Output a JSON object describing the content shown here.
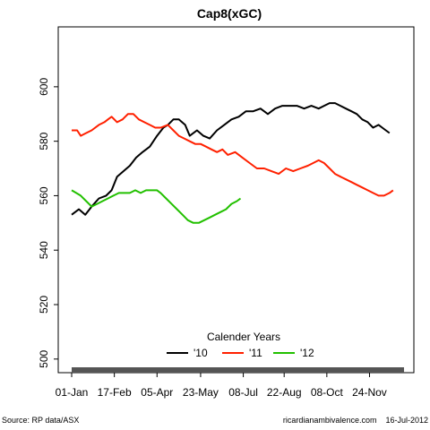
{
  "chart_data": {
    "type": "line",
    "title": "Cap8(xGC)",
    "xlabel": "",
    "ylabel": "",
    "ylim": [
      495,
      622
    ],
    "xlim": [
      0,
      366
    ],
    "x_unit": "day of year",
    "yticks": [
      500,
      520,
      540,
      560,
      580,
      600
    ],
    "xticks": [
      {
        "day": 0,
        "label": "01-Jan"
      },
      {
        "day": 47,
        "label": "17-Feb"
      },
      {
        "day": 94,
        "label": "05-Apr"
      },
      {
        "day": 142,
        "label": "23-May"
      },
      {
        "day": 189,
        "label": "08-Jul"
      },
      {
        "day": 234,
        "label": "22-Aug"
      },
      {
        "day": 281,
        "label": "08-Oct"
      },
      {
        "day": 328,
        "label": "24-Nov"
      }
    ],
    "legend": {
      "title": "Calender Years",
      "placement": "bottom-center"
    },
    "grid": false,
    "series": [
      {
        "name": "'10",
        "color": "#000000",
        "points": [
          [
            0,
            553
          ],
          [
            8,
            555
          ],
          [
            15,
            553
          ],
          [
            22,
            556
          ],
          [
            30,
            559
          ],
          [
            38,
            560
          ],
          [
            44,
            562
          ],
          [
            50,
            567
          ],
          [
            57,
            569
          ],
          [
            64,
            571
          ],
          [
            71,
            574
          ],
          [
            78,
            576
          ],
          [
            86,
            578
          ],
          [
            94,
            582
          ],
          [
            101,
            585
          ],
          [
            106,
            586
          ],
          [
            112,
            588
          ],
          [
            118,
            588
          ],
          [
            125,
            586
          ],
          [
            130,
            582
          ],
          [
            138,
            584
          ],
          [
            145,
            582
          ],
          [
            152,
            581
          ],
          [
            160,
            584
          ],
          [
            168,
            586
          ],
          [
            176,
            588
          ],
          [
            184,
            589
          ],
          [
            192,
            591
          ],
          [
            200,
            591
          ],
          [
            208,
            592
          ],
          [
            216,
            590
          ],
          [
            224,
            592
          ],
          [
            232,
            593
          ],
          [
            240,
            593
          ],
          [
            248,
            593
          ],
          [
            256,
            592
          ],
          [
            264,
            593
          ],
          [
            272,
            592
          ],
          [
            278,
            593
          ],
          [
            284,
            594
          ],
          [
            290,
            594
          ],
          [
            296,
            593
          ],
          [
            302,
            592
          ],
          [
            308,
            591
          ],
          [
            314,
            590
          ],
          [
            320,
            588
          ],
          [
            326,
            587
          ],
          [
            332,
            585
          ],
          [
            338,
            586
          ],
          [
            342,
            585
          ],
          [
            346,
            584
          ],
          [
            350,
            583
          ]
        ]
      },
      {
        "name": "'11",
        "color": "#ff2000",
        "points": [
          [
            0,
            584
          ],
          [
            6,
            584
          ],
          [
            10,
            582
          ],
          [
            16,
            583
          ],
          [
            22,
            584
          ],
          [
            30,
            586
          ],
          [
            36,
            587
          ],
          [
            40,
            588
          ],
          [
            44,
            589
          ],
          [
            50,
            587
          ],
          [
            56,
            588
          ],
          [
            62,
            590
          ],
          [
            68,
            590
          ],
          [
            74,
            588
          ],
          [
            80,
            587
          ],
          [
            86,
            586
          ],
          [
            92,
            585
          ],
          [
            98,
            585
          ],
          [
            106,
            586
          ],
          [
            112,
            584
          ],
          [
            118,
            582
          ],
          [
            124,
            581
          ],
          [
            130,
            580
          ],
          [
            136,
            579
          ],
          [
            142,
            579
          ],
          [
            148,
            578
          ],
          [
            154,
            577
          ],
          [
            160,
            576
          ],
          [
            166,
            577
          ],
          [
            172,
            575
          ],
          [
            180,
            576
          ],
          [
            188,
            574
          ],
          [
            196,
            572
          ],
          [
            204,
            570
          ],
          [
            212,
            570
          ],
          [
            220,
            569
          ],
          [
            228,
            568
          ],
          [
            236,
            570
          ],
          [
            244,
            569
          ],
          [
            252,
            570
          ],
          [
            260,
            571
          ],
          [
            266,
            572
          ],
          [
            272,
            573
          ],
          [
            278,
            572
          ],
          [
            284,
            570
          ],
          [
            290,
            568
          ],
          [
            296,
            567
          ],
          [
            302,
            566
          ],
          [
            308,
            565
          ],
          [
            314,
            564
          ],
          [
            320,
            563
          ],
          [
            326,
            562
          ],
          [
            332,
            561
          ],
          [
            338,
            560
          ],
          [
            344,
            560
          ],
          [
            350,
            561
          ],
          [
            354,
            562
          ]
        ]
      },
      {
        "name": "'12",
        "color": "#22c000",
        "points": [
          [
            0,
            562
          ],
          [
            5,
            561
          ],
          [
            10,
            560
          ],
          [
            16,
            558
          ],
          [
            22,
            556
          ],
          [
            28,
            557
          ],
          [
            34,
            558
          ],
          [
            40,
            559
          ],
          [
            46,
            560
          ],
          [
            52,
            561
          ],
          [
            58,
            561
          ],
          [
            64,
            561
          ],
          [
            70,
            562
          ],
          [
            76,
            561
          ],
          [
            82,
            562
          ],
          [
            88,
            562
          ],
          [
            94,
            562
          ],
          [
            98,
            561
          ],
          [
            104,
            559
          ],
          [
            110,
            557
          ],
          [
            116,
            555
          ],
          [
            122,
            553
          ],
          [
            128,
            551
          ],
          [
            134,
            550
          ],
          [
            140,
            550
          ],
          [
            146,
            551
          ],
          [
            152,
            552
          ],
          [
            158,
            553
          ],
          [
            164,
            554
          ],
          [
            170,
            555
          ],
          [
            176,
            557
          ],
          [
            182,
            558
          ],
          [
            186,
            559
          ]
        ]
      }
    ]
  },
  "footer": {
    "source": "Source: RP data/ASX",
    "site_date": "ricardianambivalence.com    16-Jul-2012"
  }
}
